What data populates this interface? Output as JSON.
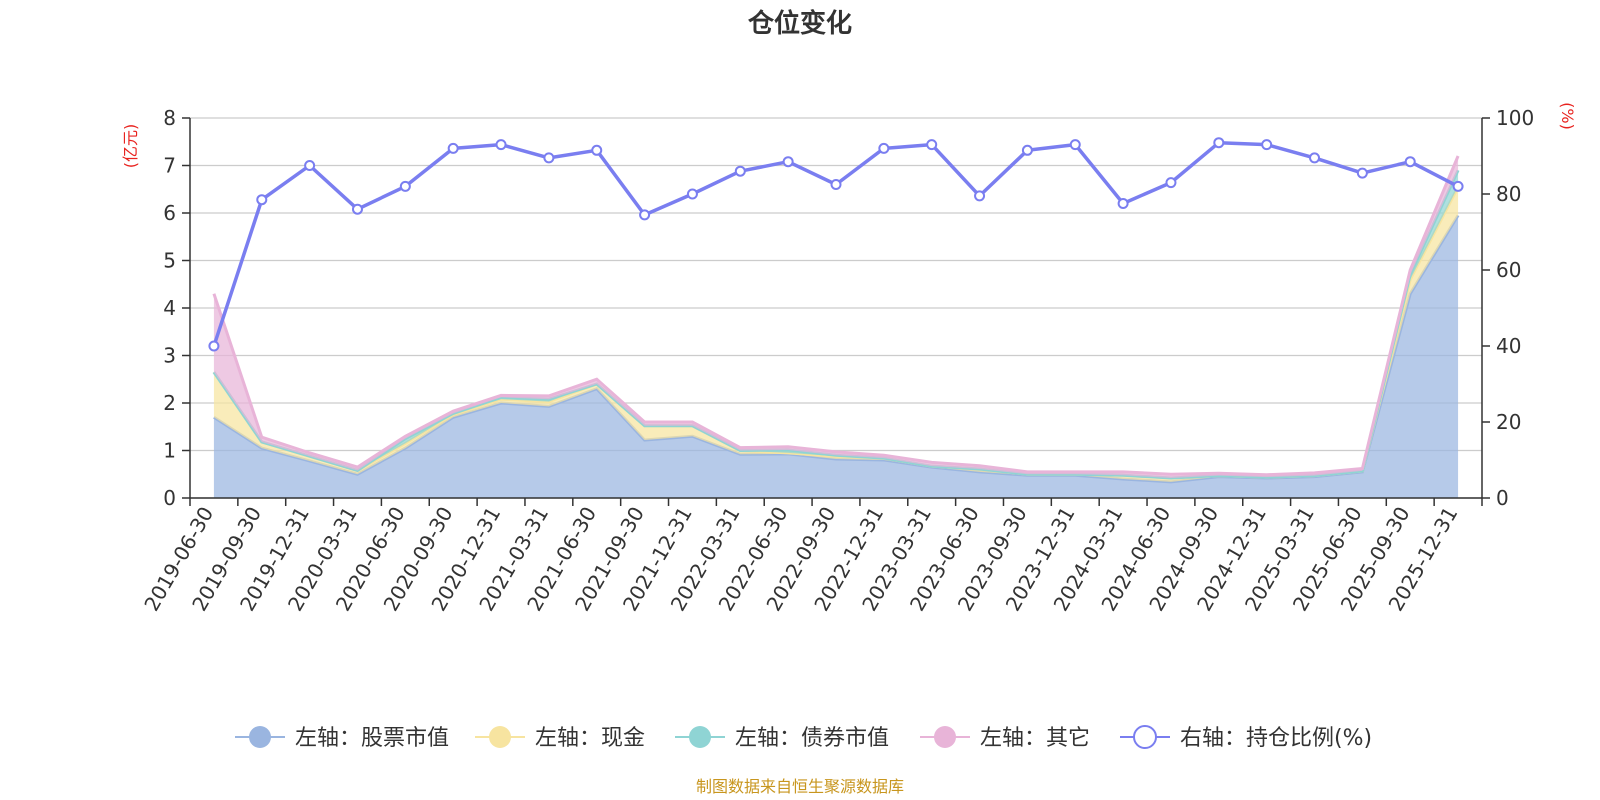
{
  "chart_data": {
    "type": "area",
    "title": "仓位变化",
    "y_left_unit": "(亿元)",
    "y_right_unit": "(%)",
    "y_left_ticks": [
      "0",
      "1",
      "2",
      "3",
      "4",
      "5",
      "6",
      "7",
      "8"
    ],
    "y_right_ticks": [
      "0",
      "20",
      "40",
      "60",
      "80",
      "100"
    ],
    "y_left_lim": [
      0,
      8
    ],
    "y_right_lim": [
      0,
      100
    ],
    "grid": true,
    "legend_position": "bottom",
    "x": [
      "2019-06-30",
      "2019-09-30",
      "2019-12-31",
      "2020-03-31",
      "2020-06-30",
      "2020-09-30",
      "2020-12-31",
      "2021-03-31",
      "2021-06-30",
      "2021-09-30",
      "2021-12-31",
      "2022-03-31",
      "2022-06-30",
      "2022-09-30",
      "2022-12-31",
      "2023-03-31",
      "2023-06-30",
      "2023-09-30",
      "2023-12-31",
      "2024-03-31",
      "2024-06-30",
      "2024-09-30",
      "2024-12-31",
      "2025-03-31",
      "2025-06-30",
      "2025-09-30",
      "2025-12-31"
    ],
    "series": [
      {
        "name": "左轴：股票市值",
        "axis": "left",
        "kind": "stack",
        "color": "#9ab5e0",
        "values": [
          1.7,
          1.05,
          0.78,
          0.5,
          1.05,
          1.7,
          2.0,
          1.93,
          2.3,
          1.22,
          1.3,
          0.92,
          0.93,
          0.82,
          0.8,
          0.65,
          0.55,
          0.48,
          0.48,
          0.4,
          0.34,
          0.45,
          0.42,
          0.45,
          0.55,
          4.3,
          5.95
        ]
      },
      {
        "name": "左轴：现金",
        "axis": "left",
        "kind": "stack",
        "color": "#f7e4a0",
        "values": [
          0.95,
          0.13,
          0.1,
          0.08,
          0.1,
          0.06,
          0.08,
          0.1,
          0.1,
          0.3,
          0.22,
          0.08,
          0.02,
          0.06,
          0.04,
          0.02,
          0.06,
          0.02,
          0.02,
          0.08,
          0.08,
          0.02,
          0.02,
          0.02,
          0.02,
          0.3,
          0.6
        ]
      },
      {
        "name": "左轴：债券市值",
        "axis": "left",
        "kind": "stack",
        "color": "#8fd4d4",
        "values": [
          0.0,
          0.0,
          0.0,
          0.0,
          0.1,
          0.02,
          0.04,
          0.05,
          0.0,
          0.0,
          0.0,
          0.0,
          0.06,
          0.02,
          0.0,
          0.0,
          0.0,
          0.0,
          0.0,
          0.0,
          0.0,
          0.0,
          0.0,
          0.0,
          0.0,
          0.1,
          0.35
        ]
      },
      {
        "name": "左轴：其它",
        "axis": "left",
        "kind": "stack",
        "color": "#e8b4d8",
        "values": [
          1.65,
          0.1,
          0.07,
          0.07,
          0.05,
          0.05,
          0.04,
          0.07,
          0.1,
          0.08,
          0.08,
          0.06,
          0.07,
          0.07,
          0.06,
          0.08,
          0.07,
          0.05,
          0.05,
          0.07,
          0.08,
          0.05,
          0.05,
          0.06,
          0.05,
          0.1,
          0.3
        ]
      },
      {
        "name": "右轴：持仓比例(%)",
        "axis": "right",
        "kind": "line",
        "color": "#7a7ef0",
        "values": [
          40,
          78.5,
          87.5,
          76,
          82,
          92,
          93,
          89.5,
          91.5,
          74.5,
          80,
          86,
          88.5,
          82.5,
          92,
          93,
          79.5,
          91.5,
          93,
          77.5,
          83,
          93.5,
          93,
          89.5,
          85.5,
          88.5,
          82
        ]
      }
    ]
  },
  "source_note": "制图数据来自恒生聚源数据库"
}
